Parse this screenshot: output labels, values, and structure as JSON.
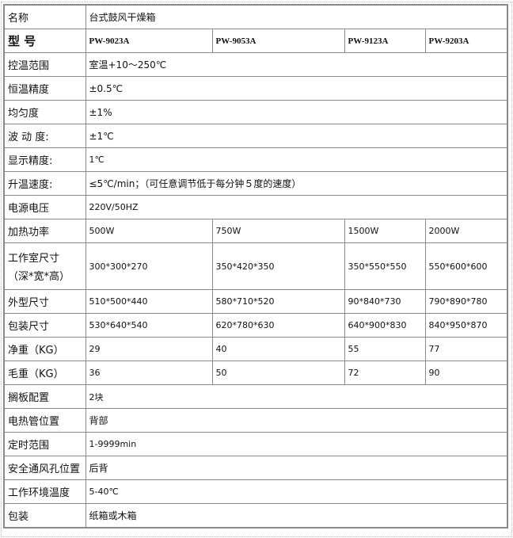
{
  "rows": [
    {
      "label": "名称",
      "values": [
        "台式鼓风干燥箱"
      ]
    },
    {
      "label": "型 号",
      "values": [
        "PW-9023A",
        "PW-9053A",
        "PW-9123A",
        "PW-9203A"
      ]
    },
    {
      "label": "控温范围",
      "values": [
        "室温+10～250℃"
      ]
    },
    {
      "label": "恒温精度",
      "values": [
        "±0.5℃"
      ]
    },
    {
      "label": "均匀度",
      "values": [
        "±1%"
      ]
    },
    {
      "label": "波 动 度:",
      "values": [
        "±1℃"
      ]
    },
    {
      "label": "显示精度:",
      "values": [
        "1℃"
      ]
    },
    {
      "label": "升温速度:",
      "values": [
        "≤5℃/min；（可任意调节低于每分钟５度的速度）"
      ]
    },
    {
      "label": "电源电压",
      "values": [
        "220V/50HZ"
      ]
    },
    {
      "label": "加热功率",
      "values": [
        "500W",
        "750W",
        "1500W",
        "2000W"
      ]
    },
    {
      "label": "工作室尺寸",
      "label2": "（深*宽*高）",
      "values": [
        "300*300*270",
        "350*420*350",
        "350*550*550",
        "550*600*600"
      ]
    },
    {
      "label": "外型尺寸",
      "values": [
        "510*500*440",
        "580*710*520",
        "90*840*730",
        "790*890*780"
      ]
    },
    {
      "label": "包装尺寸",
      "values": [
        "530*640*540",
        "620*780*630",
        "640*900*830",
        "840*950*870"
      ]
    },
    {
      "label": "净重（KG）",
      "values": [
        "29",
        "40",
        "55",
        "77"
      ]
    },
    {
      "label": "毛重（KG）",
      "values": [
        "36",
        "50",
        "72",
        "90"
      ]
    },
    {
      "label": "搁板配置",
      "values": [
        "2块"
      ]
    },
    {
      "label": "电热管位置",
      "values": [
        "背部"
      ]
    },
    {
      "label": "定时范围",
      "values": [
        "1-9999min"
      ]
    },
    {
      "label": "安全通风孔位置",
      "values": [
        "后背"
      ]
    },
    {
      "label": "工作环境温度",
      "values": [
        "5-40℃"
      ]
    },
    {
      "label": "包装",
      "values": [
        "纸箱或木箱"
      ]
    }
  ]
}
